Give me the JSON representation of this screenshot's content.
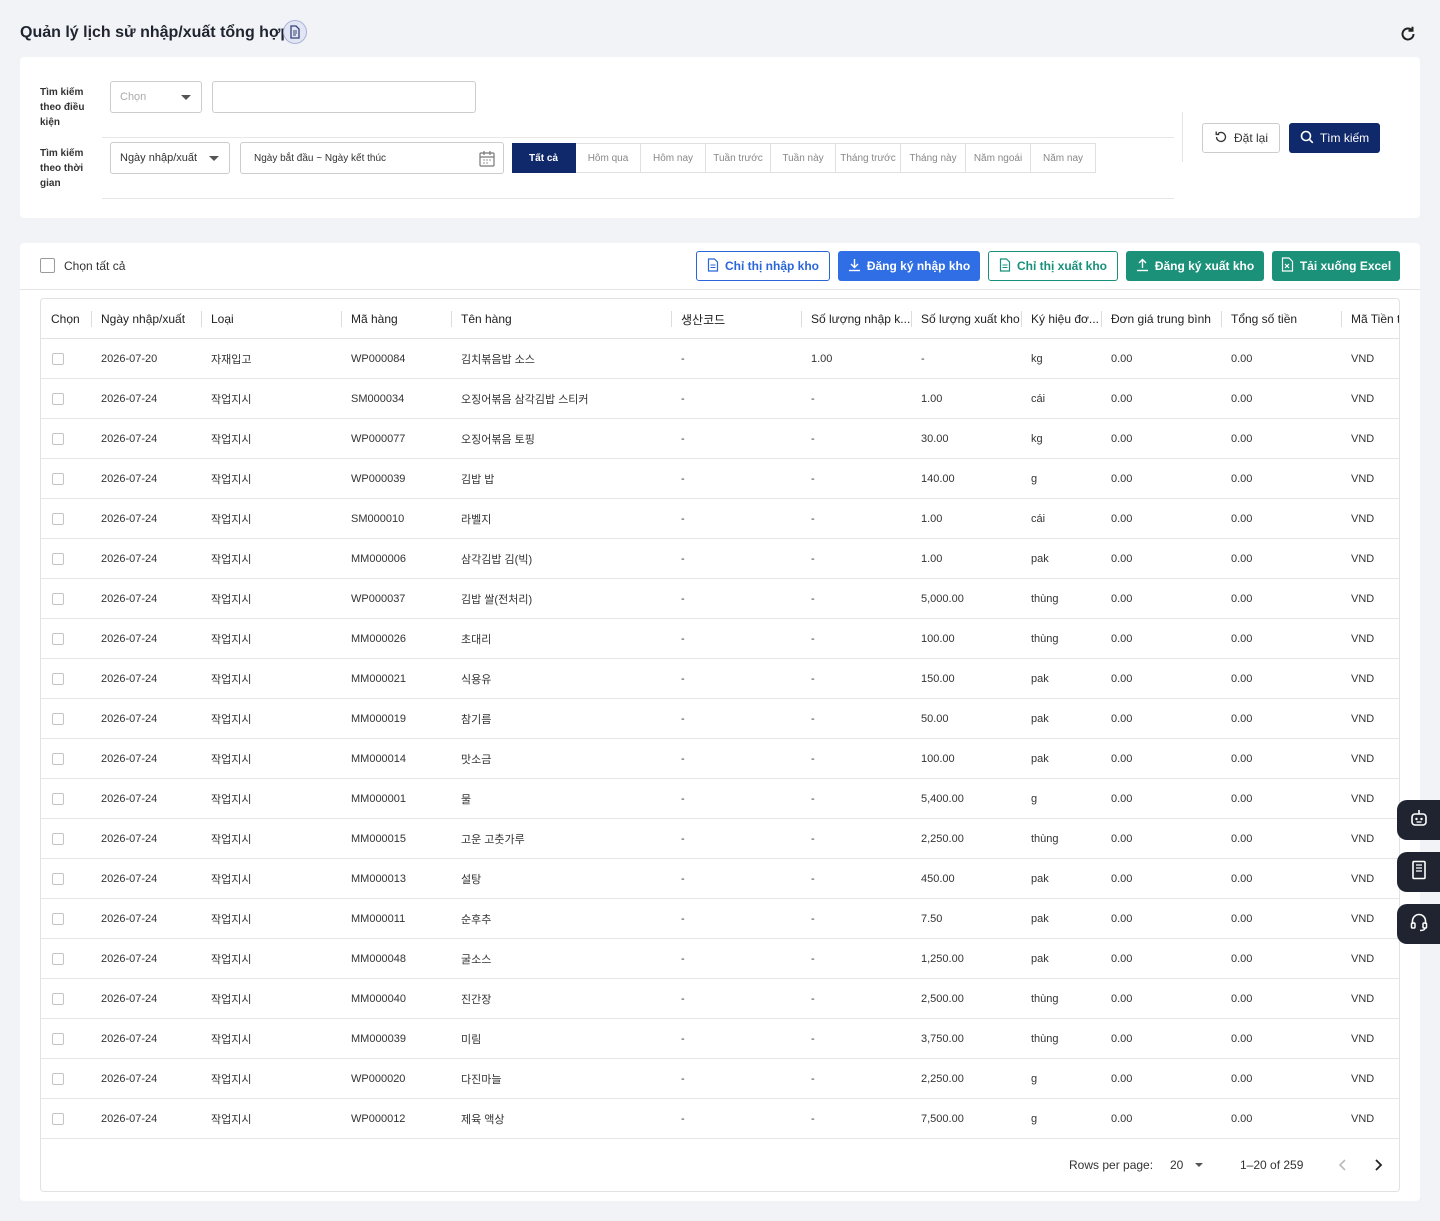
{
  "header": {
    "title": "Quản lý lịch sử nhập/xuất tổng hợp"
  },
  "filters": {
    "condition_label": "Tìm kiếm theo điều kiện",
    "condition_select": "Chọn",
    "condition_input_value": "",
    "time_label": "Tìm kiếm theo thời gian",
    "time_select": "Ngày nhập/xuất",
    "date_range": "Ngày bắt đầu ~ Ngày kết thúc",
    "periods": [
      "Tất cả",
      "Hôm qua",
      "Hôm nay",
      "Tuần trước",
      "Tuần này",
      "Tháng trước",
      "Tháng này",
      "Năm ngoái",
      "Năm nay"
    ],
    "active_period": "Tất cả",
    "reset_label": "Đặt lại",
    "search_label": "Tìm kiếm"
  },
  "toolbar": {
    "select_all_label": "Chọn tất cả",
    "buttons": {
      "inbound_order": "Chỉ thị nhập kho",
      "inbound_register": "Đăng ký nhập kho",
      "outbound_order": "Chỉ thị xuất kho",
      "outbound_register": "Đăng ký xuất kho",
      "download_excel": "Tải xuống Excel"
    }
  },
  "table": {
    "columns": [
      "Chọn",
      "Ngày nhập/xuất",
      "Loại",
      "Mã hàng",
      "Tên hàng",
      "생산코드",
      "Số lượng nhập k...",
      "Số lượng xuất kho",
      "Ký hiệu đơ...",
      "Đơn giá trung bình",
      "Tổng số tiền",
      "Mã Tiền tệ"
    ],
    "rows": [
      [
        "2026-07-20",
        "자재입고",
        "WP000084",
        "김치볶음밥 소스",
        "-",
        "1.00",
        "-",
        "kg",
        "0.00",
        "0.00",
        "VND"
      ],
      [
        "2026-07-24",
        "작업지시",
        "SM000034",
        "오징어볶음 삼각김밥 스티커",
        "-",
        "-",
        "1.00",
        "cái",
        "0.00",
        "0.00",
        "VND"
      ],
      [
        "2026-07-24",
        "작업지시",
        "WP000077",
        "오징어볶음 토핑",
        "-",
        "-",
        "30.00",
        "kg",
        "0.00",
        "0.00",
        "VND"
      ],
      [
        "2026-07-24",
        "작업지시",
        "WP000039",
        "김밥 밥",
        "-",
        "-",
        "140.00",
        "g",
        "0.00",
        "0.00",
        "VND"
      ],
      [
        "2026-07-24",
        "작업지시",
        "SM000010",
        "라벨지",
        "-",
        "-",
        "1.00",
        "cái",
        "0.00",
        "0.00",
        "VND"
      ],
      [
        "2026-07-24",
        "작업지시",
        "MM000006",
        "삼각김밥 김(빅)",
        "-",
        "-",
        "1.00",
        "pak",
        "0.00",
        "0.00",
        "VND"
      ],
      [
        "2026-07-24",
        "작업지시",
        "WP000037",
        "김밥 쌀(전처리)",
        "-",
        "-",
        "5,000.00",
        "thùng",
        "0.00",
        "0.00",
        "VND"
      ],
      [
        "2026-07-24",
        "작업지시",
        "MM000026",
        "초대리",
        "-",
        "-",
        "100.00",
        "thùng",
        "0.00",
        "0.00",
        "VND"
      ],
      [
        "2026-07-24",
        "작업지시",
        "MM000021",
        "식용유",
        "-",
        "-",
        "150.00",
        "pak",
        "0.00",
        "0.00",
        "VND"
      ],
      [
        "2026-07-24",
        "작업지시",
        "MM000019",
        "참기름",
        "-",
        "-",
        "50.00",
        "pak",
        "0.00",
        "0.00",
        "VND"
      ],
      [
        "2026-07-24",
        "작업지시",
        "MM000014",
        "맛소금",
        "-",
        "-",
        "100.00",
        "pak",
        "0.00",
        "0.00",
        "VND"
      ],
      [
        "2026-07-24",
        "작업지시",
        "MM000001",
        "물",
        "-",
        "-",
        "5,400.00",
        "g",
        "0.00",
        "0.00",
        "VND"
      ],
      [
        "2026-07-24",
        "작업지시",
        "MM000015",
        "고운 고춧가루",
        "-",
        "-",
        "2,250.00",
        "thùng",
        "0.00",
        "0.00",
        "VND"
      ],
      [
        "2026-07-24",
        "작업지시",
        "MM000013",
        "설탕",
        "-",
        "-",
        "450.00",
        "pak",
        "0.00",
        "0.00",
        "VND"
      ],
      [
        "2026-07-24",
        "작업지시",
        "MM000011",
        "순후추",
        "-",
        "-",
        "7.50",
        "pak",
        "0.00",
        "0.00",
        "VND"
      ],
      [
        "2026-07-24",
        "작업지시",
        "MM000048",
        "굴소스",
        "-",
        "-",
        "1,250.00",
        "pak",
        "0.00",
        "0.00",
        "VND"
      ],
      [
        "2026-07-24",
        "작업지시",
        "MM000040",
        "진간장",
        "-",
        "-",
        "2,500.00",
        "thùng",
        "0.00",
        "0.00",
        "VND"
      ],
      [
        "2026-07-24",
        "작업지시",
        "MM000039",
        "미림",
        "-",
        "-",
        "3,750.00",
        "thùng",
        "0.00",
        "0.00",
        "VND"
      ],
      [
        "2026-07-24",
        "작업지시",
        "WP000020",
        "다진마늘",
        "-",
        "-",
        "2,250.00",
        "g",
        "0.00",
        "0.00",
        "VND"
      ],
      [
        "2026-07-24",
        "작업지시",
        "WP000012",
        "제육 액상",
        "-",
        "-",
        "7,500.00",
        "g",
        "0.00",
        "0.00",
        "VND"
      ]
    ]
  },
  "pagination": {
    "rows_per_page_label": "Rows per page:",
    "rows_per_page": "20",
    "range": "1–20 of 259"
  },
  "floating_buttons": [
    "robot-icon",
    "notebook-icon",
    "headset-icon"
  ],
  "colors": {
    "primary_navy": "#10296a",
    "primary_blue": "#2f6ee4",
    "green": "#1a9178",
    "floating_dark": "#1f2430"
  }
}
